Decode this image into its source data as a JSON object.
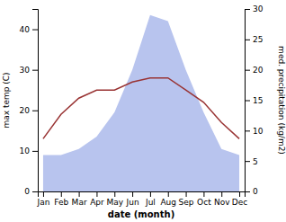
{
  "chart_data": {
    "type": "line",
    "categories": [
      "Jan",
      "Feb",
      "Mar",
      "Apr",
      "May",
      "Jun",
      "Jul",
      "Aug",
      "Sep",
      "Oct",
      "Nov",
      "Dec"
    ],
    "xlabel": "date (month)",
    "ylabel": "max temp (C)",
    "y2label": "med. precipitation (kg/m2)",
    "series": [
      {
        "type": "area",
        "axis": "y2",
        "color": "#b8c4ee",
        "values": [
          6,
          6,
          7,
          9,
          13,
          20,
          29,
          28,
          20,
          13,
          7,
          6
        ]
      },
      {
        "type": "line",
        "color": "#993333",
        "values": [
          13,
          19,
          23,
          25,
          25,
          27,
          28,
          28,
          25,
          22,
          17,
          13
        ]
      }
    ],
    "ylim": [
      0,
      45
    ],
    "yticks": [
      0,
      10,
      20,
      30,
      40
    ],
    "y2lim": [
      0,
      30
    ],
    "y2ticks": [
      0,
      5,
      10,
      15,
      20,
      25,
      30
    ]
  }
}
